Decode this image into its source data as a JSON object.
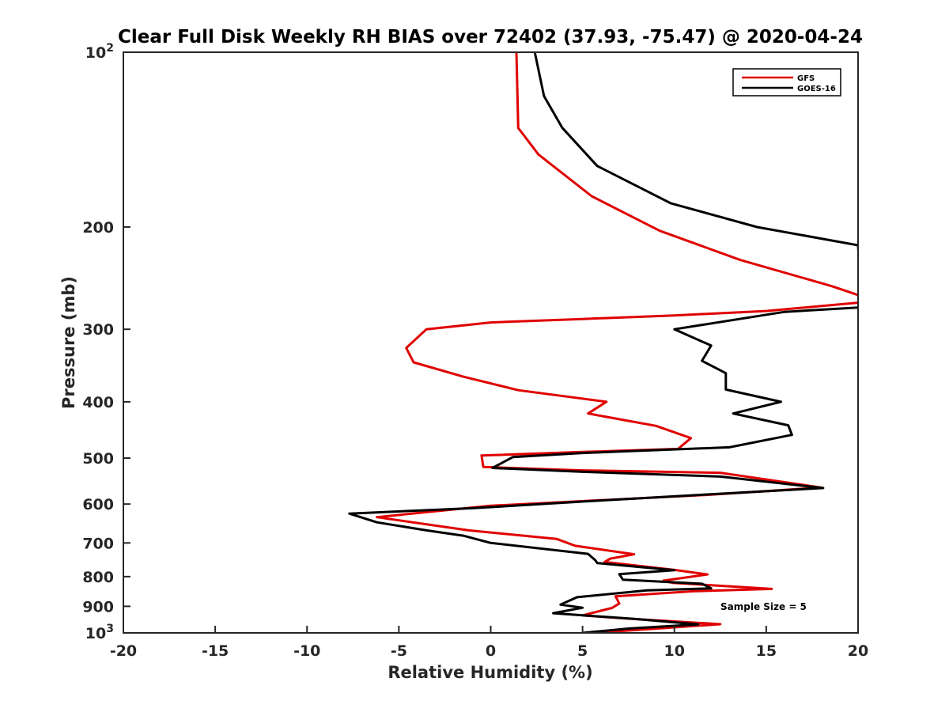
{
  "chart_data": {
    "type": "line",
    "title": "Clear Full Disk Weekly RH BIAS over 72402 (37.93, -75.47) @ 2020-04-24",
    "xlabel": "Relative Humidity (%)",
    "ylabel": "Pressure (mb)",
    "xlim": [
      -20,
      20
    ],
    "ylim": [
      100,
      1000
    ],
    "yscale": "log",
    "y_reversed": true,
    "x_ticks": [
      "-20",
      "-15",
      "-10",
      "-5",
      "0",
      "5",
      "10",
      "15",
      "20"
    ],
    "y_ticks": [
      {
        "value": 100,
        "base": "10",
        "exp": "2"
      },
      {
        "value": 200,
        "label": "200"
      },
      {
        "value": 300,
        "label": "300"
      },
      {
        "value": 400,
        "label": "400"
      },
      {
        "value": 500,
        "label": "500"
      },
      {
        "value": 600,
        "label": "600"
      },
      {
        "value": 700,
        "label": "700"
      },
      {
        "value": 800,
        "label": "800"
      },
      {
        "value": 900,
        "label": "900"
      },
      {
        "value": 1000,
        "base": "10",
        "exp": "3"
      }
    ],
    "legend_position": "top-right",
    "annotation": "Sample Size = 5",
    "series": [
      {
        "name": "GFS",
        "color": "#e00000",
        "points": [
          [
            1.4,
            100
          ],
          [
            1.5,
            135
          ],
          [
            2.6,
            150
          ],
          [
            5.5,
            177
          ],
          [
            9.2,
            203
          ],
          [
            13.6,
            228
          ],
          [
            18.6,
            253
          ],
          [
            20.0,
            262
          ],
          [
            20.2,
            268
          ],
          [
            20.0,
            270
          ],
          [
            15.0,
            279
          ],
          [
            10.0,
            284
          ],
          [
            5.0,
            288
          ],
          [
            0.0,
            292
          ],
          [
            -3.5,
            300
          ],
          [
            -4.6,
            323
          ],
          [
            -4.2,
            342
          ],
          [
            -1.5,
            362
          ],
          [
            1.5,
            382
          ],
          [
            6.3,
            400
          ],
          [
            5.3,
            419
          ],
          [
            9.0,
            440
          ],
          [
            10.9,
            462
          ],
          [
            10.2,
            482
          ],
          [
            5.0,
            488
          ],
          [
            -0.5,
            495
          ],
          [
            -0.4,
            518
          ],
          [
            5.0,
            525
          ],
          [
            12.5,
            530
          ],
          [
            18.0,
            562
          ],
          [
            12.0,
            578
          ],
          [
            6.0,
            591
          ],
          [
            0.0,
            604
          ],
          [
            -6.2,
            632
          ],
          [
            -1.2,
            666
          ],
          [
            3.6,
            689
          ],
          [
            4.6,
            708
          ],
          [
            7.8,
            732
          ],
          [
            6.5,
            745
          ],
          [
            6.2,
            755
          ],
          [
            10.0,
            779
          ],
          [
            11.8,
            793
          ],
          [
            9.4,
            813
          ],
          [
            9.9,
            820
          ],
          [
            15.3,
            840
          ],
          [
            11.0,
            848
          ],
          [
            6.8,
            865
          ],
          [
            7.0,
            890
          ],
          [
            6.6,
            906
          ],
          [
            5.0,
            933
          ],
          [
            7.5,
            945
          ],
          [
            12.5,
            966
          ],
          [
            8.0,
            988
          ],
          [
            5.5,
            1000
          ]
        ]
      },
      {
        "name": "GOES-16",
        "color": "#000000",
        "points": [
          [
            2.4,
            100
          ],
          [
            2.9,
            119
          ],
          [
            3.9,
            135
          ],
          [
            5.8,
            157
          ],
          [
            9.8,
            182
          ],
          [
            14.5,
            200
          ],
          [
            20.0,
            215
          ],
          [
            20.2,
            275
          ],
          [
            16.0,
            280
          ],
          [
            10.0,
            300
          ],
          [
            12.0,
            320
          ],
          [
            11.5,
            340
          ],
          [
            12.8,
            357
          ],
          [
            12.8,
            381
          ],
          [
            15.8,
            400
          ],
          [
            13.2,
            419
          ],
          [
            16.2,
            439
          ],
          [
            16.4,
            456
          ],
          [
            13.0,
            479
          ],
          [
            5.0,
            490
          ],
          [
            1.2,
            498
          ],
          [
            0.1,
            520
          ],
          [
            5.0,
            528
          ],
          [
            12.5,
            538
          ],
          [
            18.1,
            563
          ],
          [
            12.0,
            577
          ],
          [
            5.0,
            594
          ],
          [
            -1.0,
            610
          ],
          [
            -7.7,
            623
          ],
          [
            -6.2,
            645
          ],
          [
            -3.5,
            666
          ],
          [
            -1.5,
            680
          ],
          [
            0.0,
            700
          ],
          [
            5.3,
            731
          ],
          [
            5.7,
            750
          ],
          [
            5.8,
            758
          ],
          [
            10.0,
            780
          ],
          [
            7.0,
            792
          ],
          [
            7.2,
            810
          ],
          [
            11.5,
            823
          ],
          [
            12.0,
            838
          ],
          [
            8.5,
            845
          ],
          [
            4.7,
            868
          ],
          [
            3.8,
            894
          ],
          [
            5.0,
            905
          ],
          [
            3.4,
            925
          ],
          [
            7.8,
            946
          ],
          [
            11.3,
            967
          ],
          [
            7.5,
            983
          ],
          [
            5.0,
            1000
          ]
        ]
      }
    ]
  }
}
